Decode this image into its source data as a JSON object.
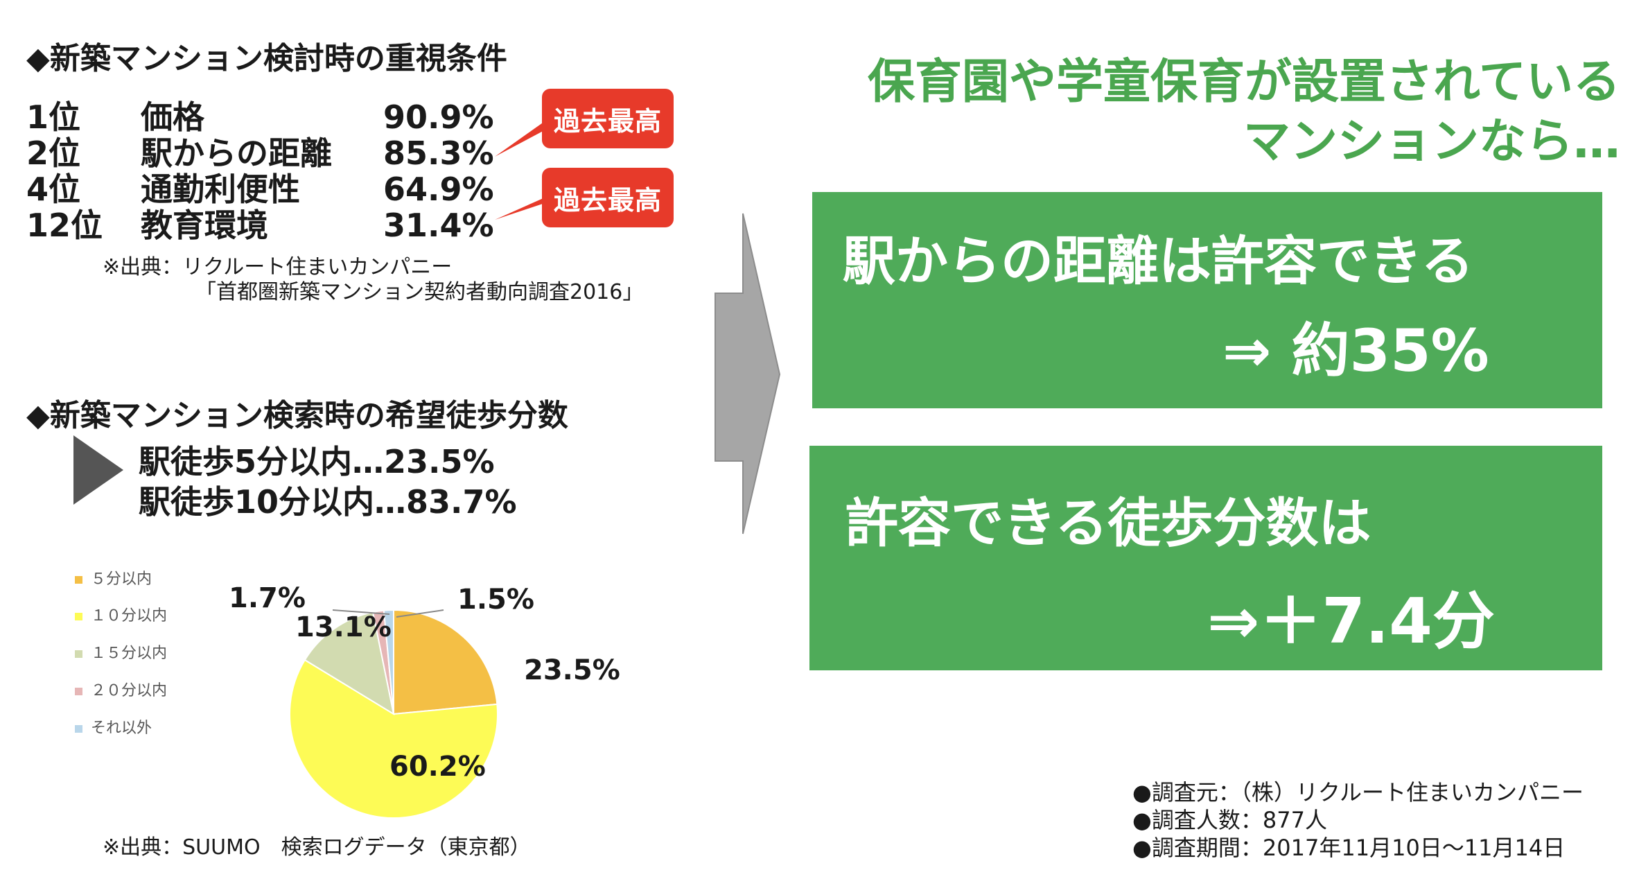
{
  "section1": {
    "title": "◆新築マンション検討時の重視条件",
    "rows": [
      {
        "rank": "1位",
        "name": "価格",
        "pct": "90.9%"
      },
      {
        "rank": "2位",
        "name": "駅からの距離",
        "pct": "85.3%"
      },
      {
        "rank": "4位",
        "name": "通勤利便性",
        "pct": "64.9%"
      },
      {
        "rank": "12位",
        "name": "教育環境",
        "pct": "31.4%"
      }
    ],
    "badge1": "過去最高",
    "badge2": "過去最高",
    "source_line1": "※出典：リクルート住まいカンパニー",
    "source_line2": "「首都圏新築マンション契約者動向調査2016」"
  },
  "section2": {
    "title": "◆新築マンション検索時の希望徒歩分数",
    "line1": "駅徒歩5分以内…23.5%",
    "line2": "駅徒歩10分以内…83.7%",
    "source": "※出典：SUUMO　検索ログデータ（東京都）"
  },
  "chart_data": {
    "type": "pie",
    "categories": [
      "５分以内",
      "１０分以内",
      "１５分以内",
      "２０分以内",
      "それ以外"
    ],
    "values": [
      23.5,
      60.2,
      13.1,
      1.7,
      1.5
    ],
    "value_labels": [
      "23.5%",
      "60.2%",
      "13.1%",
      "1.7%",
      "1.5%"
    ],
    "colors": [
      "#f4bf45",
      "#fdfb56",
      "#d2dbb0",
      "#e6b6b6",
      "#b9d6ea"
    ],
    "legend_position": "left"
  },
  "right": {
    "headline1": "保育園や学童保育が設置されている",
    "headline2": "マンションなら…",
    "box1_line1": "駅からの距離は許容できる",
    "box1_line2": "⇒ 約35%",
    "box2_line1": "許容できる徒歩分数は",
    "box2_line2": "⇒＋7.4分",
    "notes": [
      "●調査元：（株）リクルート住まいカンパニー",
      "●調査人数：877人",
      "●調査期間：2017年11月10日～11月14日"
    ]
  },
  "colors": {
    "green": "#4fab59",
    "headline_green": "#4aa64f",
    "badge_red": "#e73a2a",
    "arrow_gray": "#a6a6a6"
  }
}
